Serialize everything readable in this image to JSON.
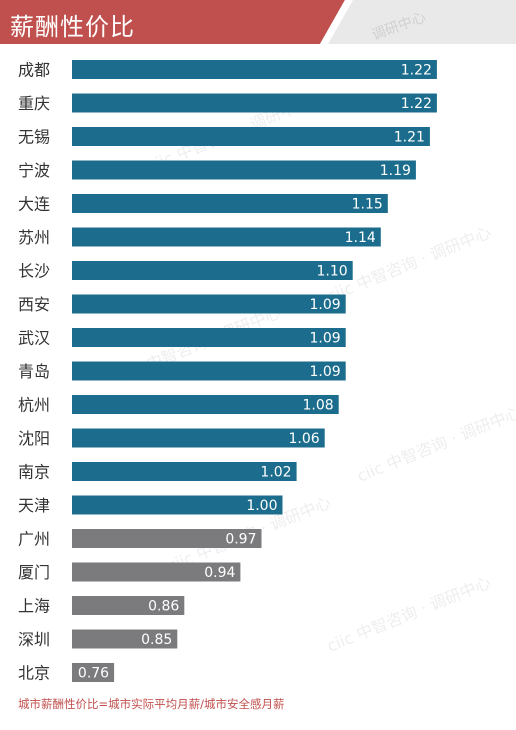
{
  "header": {
    "title": "薪酬性价比",
    "watermark": "调研中心"
  },
  "watermark_text": "ciic 中智咨询 · 调研中心",
  "colors": {
    "banner": "#c0504d",
    "above_one": "#1c6d8d",
    "below_one": "#7b7b7d",
    "label_text": "#333333",
    "value_text": "#ffffff"
  },
  "chart_data": {
    "type": "bar",
    "orientation": "horizontal",
    "title": "薪酬性价比",
    "categories": [
      "成都",
      "重庆",
      "无锡",
      "宁波",
      "大连",
      "苏州",
      "长沙",
      "西安",
      "武汉",
      "青岛",
      "杭州",
      "沈阳",
      "南京",
      "天津",
      "广州",
      "厦门",
      "上海",
      "深圳",
      "北京"
    ],
    "values": [
      1.22,
      1.22,
      1.21,
      1.19,
      1.15,
      1.14,
      1.1,
      1.09,
      1.09,
      1.09,
      1.08,
      1.06,
      1.02,
      1.0,
      0.97,
      0.94,
      0.86,
      0.85,
      0.76
    ],
    "value_labels": [
      "1.22",
      "1.22",
      "1.21",
      "1.19",
      "1.15",
      "1.14",
      "1.10",
      "1.09",
      "1.09",
      "1.09",
      "1.08",
      "1.06",
      "1.02",
      "1.00",
      "0.97",
      "0.94",
      "0.86",
      "0.85",
      "0.76"
    ],
    "xlim": [
      0.7,
      1.25
    ],
    "grid": false,
    "color_rule": "values >= 1.00 drawn teal, values below 1.00 drawn grey"
  },
  "footnote": "城市薪酬性价比=城市实际平均月薪/城市安全感月薪"
}
